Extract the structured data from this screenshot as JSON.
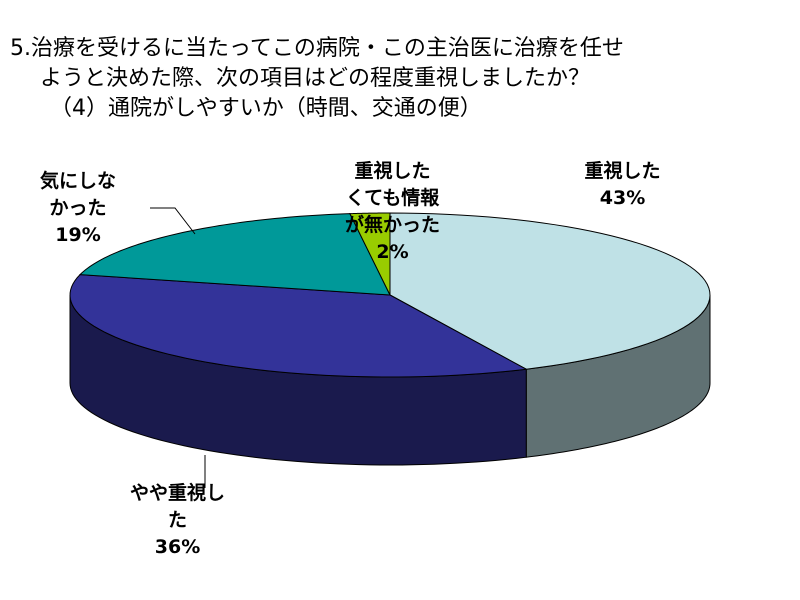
{
  "chart_data": {
    "type": "pie3d",
    "title": [
      "5.治療を受けるに当たってこの病院・この主治医に治療を任せ",
      "ようと決めた際、次の項目はどの程度重視しましたか？",
      "（4）通院がしやすいか（時間、交通の便）"
    ],
    "categories": [
      "重視した",
      "やや重視した",
      "気にしなかった",
      "重視したくても情報が無かった"
    ],
    "values": [
      43,
      36,
      19,
      2
    ],
    "value_labels": [
      "43%",
      "36%",
      "19%",
      "2%"
    ],
    "colors": [
      "#bfe1e6",
      "#333399",
      "#009999",
      "#99cc00"
    ]
  }
}
